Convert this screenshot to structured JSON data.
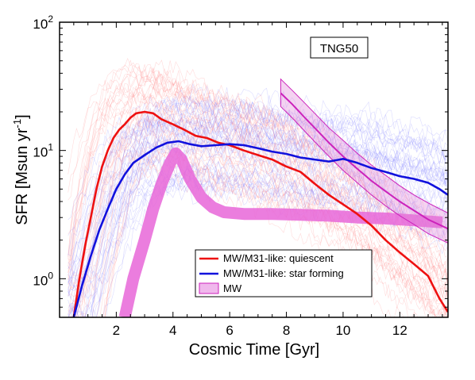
{
  "chart_data": {
    "type": "line",
    "title": "",
    "xlabel": "Cosmic Time [Gyr]",
    "ylabel_main": "SFR [Msun yr",
    "ylabel_sup": "-1",
    "ylabel_end": "]",
    "xlim": [
      0,
      13.7
    ],
    "ylim": [
      0.5,
      100
    ],
    "yscale": "log",
    "x_ticks": [
      2,
      4,
      6,
      8,
      10,
      12
    ],
    "x_tick_labels": [
      "2",
      "4",
      "6",
      "8",
      "10",
      "12"
    ],
    "y_ticks": [
      1,
      10,
      100
    ],
    "y_tick_base": "10",
    "y_tick_exps": [
      "0",
      "1",
      "2"
    ],
    "annotation": "TNG50",
    "grid": false,
    "legend_position": "lower-center",
    "series": [
      {
        "name": "MW/M31-like: quiescent",
        "color": "#ee1111",
        "x": [
          0.5,
          0.7,
          0.9,
          1.1,
          1.3,
          1.5,
          1.7,
          1.9,
          2.1,
          2.3,
          2.5,
          2.7,
          3.0,
          3.3,
          3.6,
          4.0,
          4.4,
          4.8,
          5.2,
          5.6,
          6.0,
          6.5,
          7.0,
          7.5,
          8.0,
          8.5,
          9.0,
          9.5,
          10.0,
          10.5,
          11.0,
          11.5,
          12.0,
          12.5,
          13.0,
          13.4,
          13.7
        ],
        "y": [
          0.5,
          1.0,
          1.8,
          3.0,
          5.0,
          7.5,
          10.0,
          12.5,
          14.5,
          16.0,
          18.0,
          19.5,
          20.0,
          19.5,
          17.5,
          16.0,
          14.5,
          13.0,
          12.5,
          11.5,
          11.0,
          10.0,
          9.2,
          8.5,
          7.5,
          6.8,
          5.5,
          4.5,
          3.8,
          3.2,
          2.6,
          2.0,
          1.6,
          1.3,
          1.05,
          0.7,
          0.55
        ]
      },
      {
        "name": "MW/M31-like: star forming",
        "color": "#1111dd",
        "x": [
          0.5,
          0.8,
          1.1,
          1.4,
          1.7,
          2.0,
          2.3,
          2.6,
          3.0,
          3.4,
          3.8,
          4.2,
          4.6,
          5.0,
          5.5,
          6.0,
          6.5,
          7.0,
          7.5,
          8.0,
          8.5,
          9.0,
          9.5,
          10.0,
          10.5,
          11.0,
          11.5,
          12.0,
          12.5,
          13.0,
          13.4,
          13.7
        ],
        "y": [
          0.5,
          0.9,
          1.5,
          2.4,
          3.5,
          5.0,
          6.5,
          8.0,
          9.2,
          10.5,
          11.5,
          11.8,
          11.2,
          10.8,
          11.0,
          11.2,
          11.0,
          10.4,
          9.8,
          9.4,
          8.8,
          8.5,
          8.2,
          8.6,
          8.0,
          7.3,
          6.8,
          6.3,
          6.0,
          5.6,
          5.0,
          4.5
        ]
      },
      {
        "name": "MW",
        "color": "#e866d8",
        "x": [
          2.3,
          2.6,
          3.0,
          3.3,
          3.6,
          3.9,
          4.1,
          4.3,
          4.6,
          5.0,
          5.4,
          5.8,
          6.5,
          7.5,
          8.5,
          9.5,
          10.5,
          11.5,
          12.5,
          13.5
        ],
        "y": [
          0.5,
          1.0,
          2.0,
          3.5,
          5.5,
          8.0,
          9.5,
          8.5,
          6.0,
          4.3,
          3.6,
          3.3,
          3.2,
          3.2,
          3.15,
          3.1,
          3.0,
          2.95,
          2.85,
          2.75
        ]
      },
      {
        "name": "",
        "color": "#cc22bb",
        "x": [
          7.8,
          8.2,
          8.6,
          9.0,
          9.5,
          10.0,
          10.5,
          11.0,
          11.5,
          12.0,
          12.5,
          13.0,
          13.7
        ],
        "y": [
          28.0,
          23.0,
          18.5,
          15.0,
          11.5,
          9.0,
          7.2,
          5.8,
          4.8,
          4.0,
          3.4,
          2.9,
          2.45
        ],
        "upper": [
          36.0,
          29.5,
          24.0,
          19.5,
          15.0,
          12.0,
          9.5,
          7.7,
          6.4,
          5.3,
          4.5,
          3.9,
          3.25
        ],
        "lower": [
          22.0,
          18.0,
          14.5,
          11.7,
          9.0,
          7.0,
          5.6,
          4.5,
          3.7,
          3.1,
          2.65,
          2.25,
          1.9
        ]
      }
    ]
  }
}
